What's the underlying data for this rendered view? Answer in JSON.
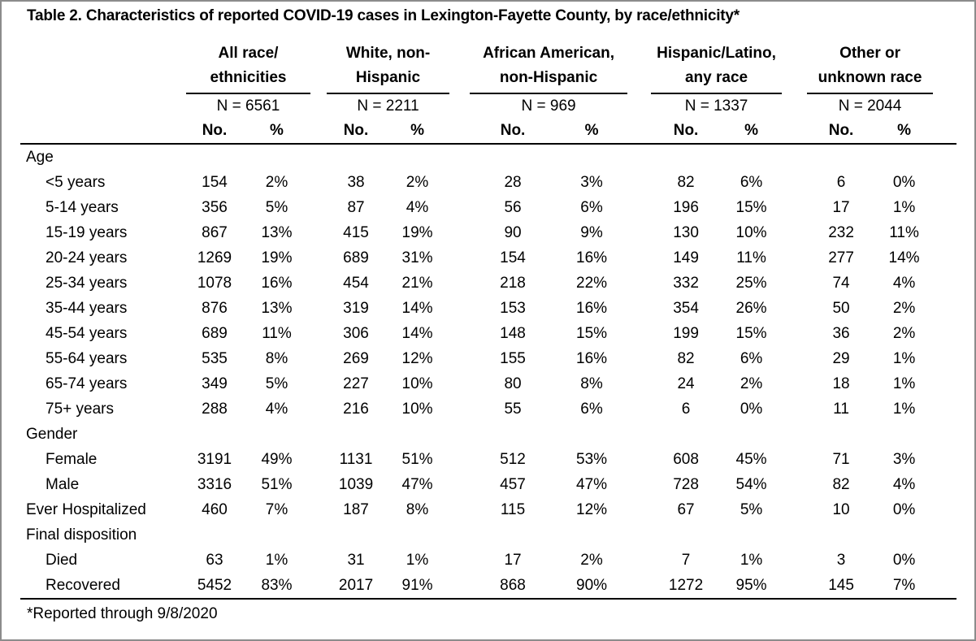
{
  "title": "Table 2. Characteristics of reported COVID-19 cases in Lexington-Fayette County, by race/ethnicity*",
  "footnote": "*Reported through 9/8/2020",
  "colors": {
    "text": "#000000",
    "rule": "#000000",
    "frame": "#8c8c8c",
    "background": "#ffffff"
  },
  "columns": {
    "no": "No.",
    "pct": "%"
  },
  "groups": [
    {
      "label_line1": "All race/",
      "label_line2": "ethnicities",
      "n": "N = 6561"
    },
    {
      "label_line1": "White, non-",
      "label_line2": "Hispanic",
      "n": "N = 2211"
    },
    {
      "label_line1": "African American,",
      "label_line2": "non-Hispanic",
      "n": "N = 969"
    },
    {
      "label_line1": "Hispanic/Latino,",
      "label_line2": "any race",
      "n": "N = 1337"
    },
    {
      "label_line1": "Other or",
      "label_line2": "unknown race",
      "n": "N = 2044"
    }
  ],
  "rows": [
    {
      "label": "Age",
      "section": true,
      "indent": false,
      "values": []
    },
    {
      "label": "<5 years",
      "section": false,
      "indent": true,
      "values": [
        "154",
        "2%",
        "38",
        "2%",
        "28",
        "3%",
        "82",
        "6%",
        "6",
        "0%"
      ]
    },
    {
      "label": "5-14 years",
      "section": false,
      "indent": true,
      "values": [
        "356",
        "5%",
        "87",
        "4%",
        "56",
        "6%",
        "196",
        "15%",
        "17",
        "1%"
      ]
    },
    {
      "label": "15-19 years",
      "section": false,
      "indent": true,
      "values": [
        "867",
        "13%",
        "415",
        "19%",
        "90",
        "9%",
        "130",
        "10%",
        "232",
        "11%"
      ]
    },
    {
      "label": "20-24 years",
      "section": false,
      "indent": true,
      "values": [
        "1269",
        "19%",
        "689",
        "31%",
        "154",
        "16%",
        "149",
        "11%",
        "277",
        "14%"
      ]
    },
    {
      "label": "25-34 years",
      "section": false,
      "indent": true,
      "values": [
        "1078",
        "16%",
        "454",
        "21%",
        "218",
        "22%",
        "332",
        "25%",
        "74",
        "4%"
      ]
    },
    {
      "label": "35-44 years",
      "section": false,
      "indent": true,
      "values": [
        "876",
        "13%",
        "319",
        "14%",
        "153",
        "16%",
        "354",
        "26%",
        "50",
        "2%"
      ]
    },
    {
      "label": "45-54 years",
      "section": false,
      "indent": true,
      "values": [
        "689",
        "11%",
        "306",
        "14%",
        "148",
        "15%",
        "199",
        "15%",
        "36",
        "2%"
      ]
    },
    {
      "label": "55-64 years",
      "section": false,
      "indent": true,
      "values": [
        "535",
        "8%",
        "269",
        "12%",
        "155",
        "16%",
        "82",
        "6%",
        "29",
        "1%"
      ]
    },
    {
      "label": "65-74 years",
      "section": false,
      "indent": true,
      "values": [
        "349",
        "5%",
        "227",
        "10%",
        "80",
        "8%",
        "24",
        "2%",
        "18",
        "1%"
      ]
    },
    {
      "label": "75+ years",
      "section": false,
      "indent": true,
      "values": [
        "288",
        "4%",
        "216",
        "10%",
        "55",
        "6%",
        "6",
        "0%",
        "11",
        "1%"
      ]
    },
    {
      "label": "Gender",
      "section": true,
      "indent": false,
      "values": []
    },
    {
      "label": "Female",
      "section": false,
      "indent": true,
      "values": [
        "3191",
        "49%",
        "1131",
        "51%",
        "512",
        "53%",
        "608",
        "45%",
        "71",
        "3%"
      ]
    },
    {
      "label": "Male",
      "section": false,
      "indent": true,
      "values": [
        "3316",
        "51%",
        "1039",
        "47%",
        "457",
        "47%",
        "728",
        "54%",
        "82",
        "4%"
      ]
    },
    {
      "label": "Ever Hospitalized",
      "section": false,
      "indent": false,
      "values": [
        "460",
        "7%",
        "187",
        "8%",
        "115",
        "12%",
        "67",
        "5%",
        "10",
        "0%"
      ]
    },
    {
      "label": "Final disposition",
      "section": true,
      "indent": false,
      "values": []
    },
    {
      "label": "Died",
      "section": false,
      "indent": true,
      "values": [
        "63",
        "1%",
        "31",
        "1%",
        "17",
        "2%",
        "7",
        "1%",
        "3",
        "0%"
      ]
    },
    {
      "label": "Recovered",
      "section": false,
      "indent": true,
      "values": [
        "5452",
        "83%",
        "2017",
        "91%",
        "868",
        "90%",
        "1272",
        "95%",
        "145",
        "7%"
      ]
    }
  ]
}
